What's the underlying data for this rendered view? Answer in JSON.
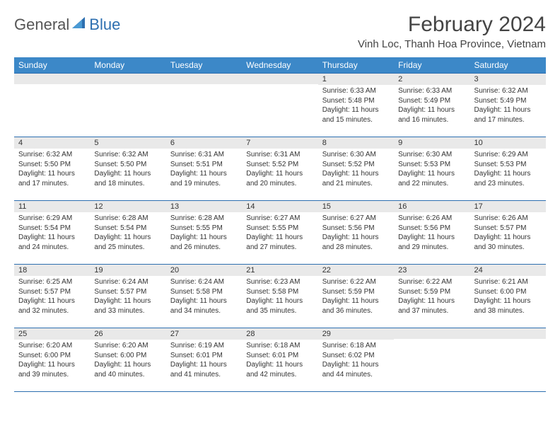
{
  "brand": {
    "general": "General",
    "blue": "Blue"
  },
  "colors": {
    "header_bg": "#3c88c8",
    "header_text": "#ffffff",
    "border": "#2d6fb0",
    "daynum_bg": "#e9e9e9",
    "text": "#333333",
    "body_bg": "#ffffff"
  },
  "header": {
    "month_title": "February 2024",
    "location": "Vinh Loc, Thanh Hoa Province, Vietnam"
  },
  "day_names": [
    "Sunday",
    "Monday",
    "Tuesday",
    "Wednesday",
    "Thursday",
    "Friday",
    "Saturday"
  ],
  "weeks": [
    [
      {
        "n": "",
        "sr": "",
        "ss": "",
        "dl": ""
      },
      {
        "n": "",
        "sr": "",
        "ss": "",
        "dl": ""
      },
      {
        "n": "",
        "sr": "",
        "ss": "",
        "dl": ""
      },
      {
        "n": "",
        "sr": "",
        "ss": "",
        "dl": ""
      },
      {
        "n": "1",
        "sr": "Sunrise: 6:33 AM",
        "ss": "Sunset: 5:48 PM",
        "dl": "Daylight: 11 hours and 15 minutes."
      },
      {
        "n": "2",
        "sr": "Sunrise: 6:33 AM",
        "ss": "Sunset: 5:49 PM",
        "dl": "Daylight: 11 hours and 16 minutes."
      },
      {
        "n": "3",
        "sr": "Sunrise: 6:32 AM",
        "ss": "Sunset: 5:49 PM",
        "dl": "Daylight: 11 hours and 17 minutes."
      }
    ],
    [
      {
        "n": "4",
        "sr": "Sunrise: 6:32 AM",
        "ss": "Sunset: 5:50 PM",
        "dl": "Daylight: 11 hours and 17 minutes."
      },
      {
        "n": "5",
        "sr": "Sunrise: 6:32 AM",
        "ss": "Sunset: 5:50 PM",
        "dl": "Daylight: 11 hours and 18 minutes."
      },
      {
        "n": "6",
        "sr": "Sunrise: 6:31 AM",
        "ss": "Sunset: 5:51 PM",
        "dl": "Daylight: 11 hours and 19 minutes."
      },
      {
        "n": "7",
        "sr": "Sunrise: 6:31 AM",
        "ss": "Sunset: 5:52 PM",
        "dl": "Daylight: 11 hours and 20 minutes."
      },
      {
        "n": "8",
        "sr": "Sunrise: 6:30 AM",
        "ss": "Sunset: 5:52 PM",
        "dl": "Daylight: 11 hours and 21 minutes."
      },
      {
        "n": "9",
        "sr": "Sunrise: 6:30 AM",
        "ss": "Sunset: 5:53 PM",
        "dl": "Daylight: 11 hours and 22 minutes."
      },
      {
        "n": "10",
        "sr": "Sunrise: 6:29 AM",
        "ss": "Sunset: 5:53 PM",
        "dl": "Daylight: 11 hours and 23 minutes."
      }
    ],
    [
      {
        "n": "11",
        "sr": "Sunrise: 6:29 AM",
        "ss": "Sunset: 5:54 PM",
        "dl": "Daylight: 11 hours and 24 minutes."
      },
      {
        "n": "12",
        "sr": "Sunrise: 6:28 AM",
        "ss": "Sunset: 5:54 PM",
        "dl": "Daylight: 11 hours and 25 minutes."
      },
      {
        "n": "13",
        "sr": "Sunrise: 6:28 AM",
        "ss": "Sunset: 5:55 PM",
        "dl": "Daylight: 11 hours and 26 minutes."
      },
      {
        "n": "14",
        "sr": "Sunrise: 6:27 AM",
        "ss": "Sunset: 5:55 PM",
        "dl": "Daylight: 11 hours and 27 minutes."
      },
      {
        "n": "15",
        "sr": "Sunrise: 6:27 AM",
        "ss": "Sunset: 5:56 PM",
        "dl": "Daylight: 11 hours and 28 minutes."
      },
      {
        "n": "16",
        "sr": "Sunrise: 6:26 AM",
        "ss": "Sunset: 5:56 PM",
        "dl": "Daylight: 11 hours and 29 minutes."
      },
      {
        "n": "17",
        "sr": "Sunrise: 6:26 AM",
        "ss": "Sunset: 5:57 PM",
        "dl": "Daylight: 11 hours and 30 minutes."
      }
    ],
    [
      {
        "n": "18",
        "sr": "Sunrise: 6:25 AM",
        "ss": "Sunset: 5:57 PM",
        "dl": "Daylight: 11 hours and 32 minutes."
      },
      {
        "n": "19",
        "sr": "Sunrise: 6:24 AM",
        "ss": "Sunset: 5:57 PM",
        "dl": "Daylight: 11 hours and 33 minutes."
      },
      {
        "n": "20",
        "sr": "Sunrise: 6:24 AM",
        "ss": "Sunset: 5:58 PM",
        "dl": "Daylight: 11 hours and 34 minutes."
      },
      {
        "n": "21",
        "sr": "Sunrise: 6:23 AM",
        "ss": "Sunset: 5:58 PM",
        "dl": "Daylight: 11 hours and 35 minutes."
      },
      {
        "n": "22",
        "sr": "Sunrise: 6:22 AM",
        "ss": "Sunset: 5:59 PM",
        "dl": "Daylight: 11 hours and 36 minutes."
      },
      {
        "n": "23",
        "sr": "Sunrise: 6:22 AM",
        "ss": "Sunset: 5:59 PM",
        "dl": "Daylight: 11 hours and 37 minutes."
      },
      {
        "n": "24",
        "sr": "Sunrise: 6:21 AM",
        "ss": "Sunset: 6:00 PM",
        "dl": "Daylight: 11 hours and 38 minutes."
      }
    ],
    [
      {
        "n": "25",
        "sr": "Sunrise: 6:20 AM",
        "ss": "Sunset: 6:00 PM",
        "dl": "Daylight: 11 hours and 39 minutes."
      },
      {
        "n": "26",
        "sr": "Sunrise: 6:20 AM",
        "ss": "Sunset: 6:00 PM",
        "dl": "Daylight: 11 hours and 40 minutes."
      },
      {
        "n": "27",
        "sr": "Sunrise: 6:19 AM",
        "ss": "Sunset: 6:01 PM",
        "dl": "Daylight: 11 hours and 41 minutes."
      },
      {
        "n": "28",
        "sr": "Sunrise: 6:18 AM",
        "ss": "Sunset: 6:01 PM",
        "dl": "Daylight: 11 hours and 42 minutes."
      },
      {
        "n": "29",
        "sr": "Sunrise: 6:18 AM",
        "ss": "Sunset: 6:02 PM",
        "dl": "Daylight: 11 hours and 44 minutes."
      },
      {
        "n": "",
        "sr": "",
        "ss": "",
        "dl": ""
      },
      {
        "n": "",
        "sr": "",
        "ss": "",
        "dl": ""
      }
    ]
  ]
}
